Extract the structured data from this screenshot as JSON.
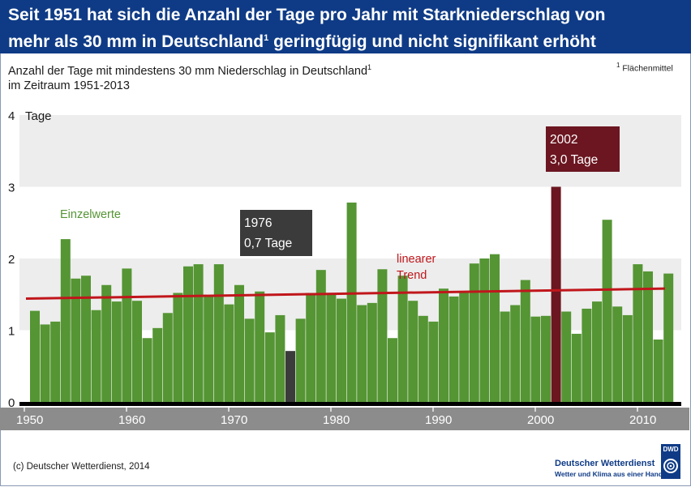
{
  "header": {
    "title_line1": "Seit 1951 hat sich die Anzahl der Tage pro Jahr mit Starkniederschlag von",
    "title_line2_a": "mehr als 30 mm in Deutschland",
    "title_line2_sup": "1",
    "title_line2_b": " geringfügig und nicht signifikant erhöht"
  },
  "subtitle": {
    "line1": "Anzahl der Tage mit mindestens 30 mm Niederschlag in Deutschland",
    "line1_sup": "1",
    "line2": "im Zeitraum 1951-2013"
  },
  "footnote": {
    "sup": "1",
    "text": "Flächenmittel"
  },
  "footer": {
    "copyright": "(c) Deutscher Wetterdienst, 2014",
    "logo_name": "Deutscher Wetterdienst",
    "logo_tagline": "Wetter und Klima aus einer Hand",
    "logo_abbr": "DWD"
  },
  "chart_data": {
    "type": "bar",
    "ylabel": "Tage",
    "ylim": [
      0,
      4
    ],
    "yticks": [
      "0",
      "1",
      "2",
      "3",
      "4"
    ],
    "xlim": [
      1950,
      2014
    ],
    "xticks": [
      "1950",
      "1960",
      "1970",
      "1980",
      "1990",
      "2000",
      "2010"
    ],
    "grid": "alternating horizontal bands",
    "x": [
      1951,
      1952,
      1953,
      1954,
      1955,
      1956,
      1957,
      1958,
      1959,
      1960,
      1961,
      1962,
      1963,
      1964,
      1965,
      1966,
      1967,
      1968,
      1969,
      1970,
      1971,
      1972,
      1973,
      1974,
      1975,
      1976,
      1977,
      1978,
      1979,
      1980,
      1981,
      1982,
      1983,
      1984,
      1985,
      1986,
      1987,
      1988,
      1989,
      1990,
      1991,
      1992,
      1993,
      1994,
      1995,
      1996,
      1997,
      1998,
      1999,
      2000,
      2001,
      2002,
      2003,
      2004,
      2005,
      2006,
      2007,
      2008,
      2009,
      2010,
      2011,
      2012,
      2013
    ],
    "values": [
      1.27,
      1.08,
      1.12,
      2.27,
      1.72,
      1.76,
      1.28,
      1.63,
      1.4,
      1.86,
      1.41,
      0.89,
      1.03,
      1.24,
      1.52,
      1.89,
      1.92,
      1.48,
      1.92,
      1.36,
      1.63,
      1.16,
      1.54,
      0.97,
      1.21,
      0.71,
      1.16,
      1.52,
      1.84,
      1.52,
      1.44,
      2.78,
      1.35,
      1.38,
      1.85,
      0.89,
      1.76,
      1.41,
      1.2,
      1.12,
      1.58,
      1.47,
      1.54,
      1.93,
      2.0,
      2.06,
      1.26,
      1.35,
      1.7,
      1.19,
      1.2,
      3.0,
      1.26,
      0.95,
      1.3,
      1.4,
      2.54,
      1.33,
      1.21,
      1.92,
      1.82,
      0.87,
      1.79
    ],
    "series_name": "Einzelwerte",
    "series_color": "#559534",
    "trend": {
      "label_line1": "linearer",
      "label_line2": "Trend",
      "start": 1.44,
      "end": 1.58,
      "color": "#c0161b"
    },
    "highlights": [
      {
        "year": 1976,
        "label_year": "1976",
        "label_value": "0,7 Tage",
        "color": "#3b3b3b"
      },
      {
        "year": 2002,
        "label_year": "2002",
        "label_value": "3,0 Tage",
        "color": "#6b1620"
      }
    ]
  }
}
